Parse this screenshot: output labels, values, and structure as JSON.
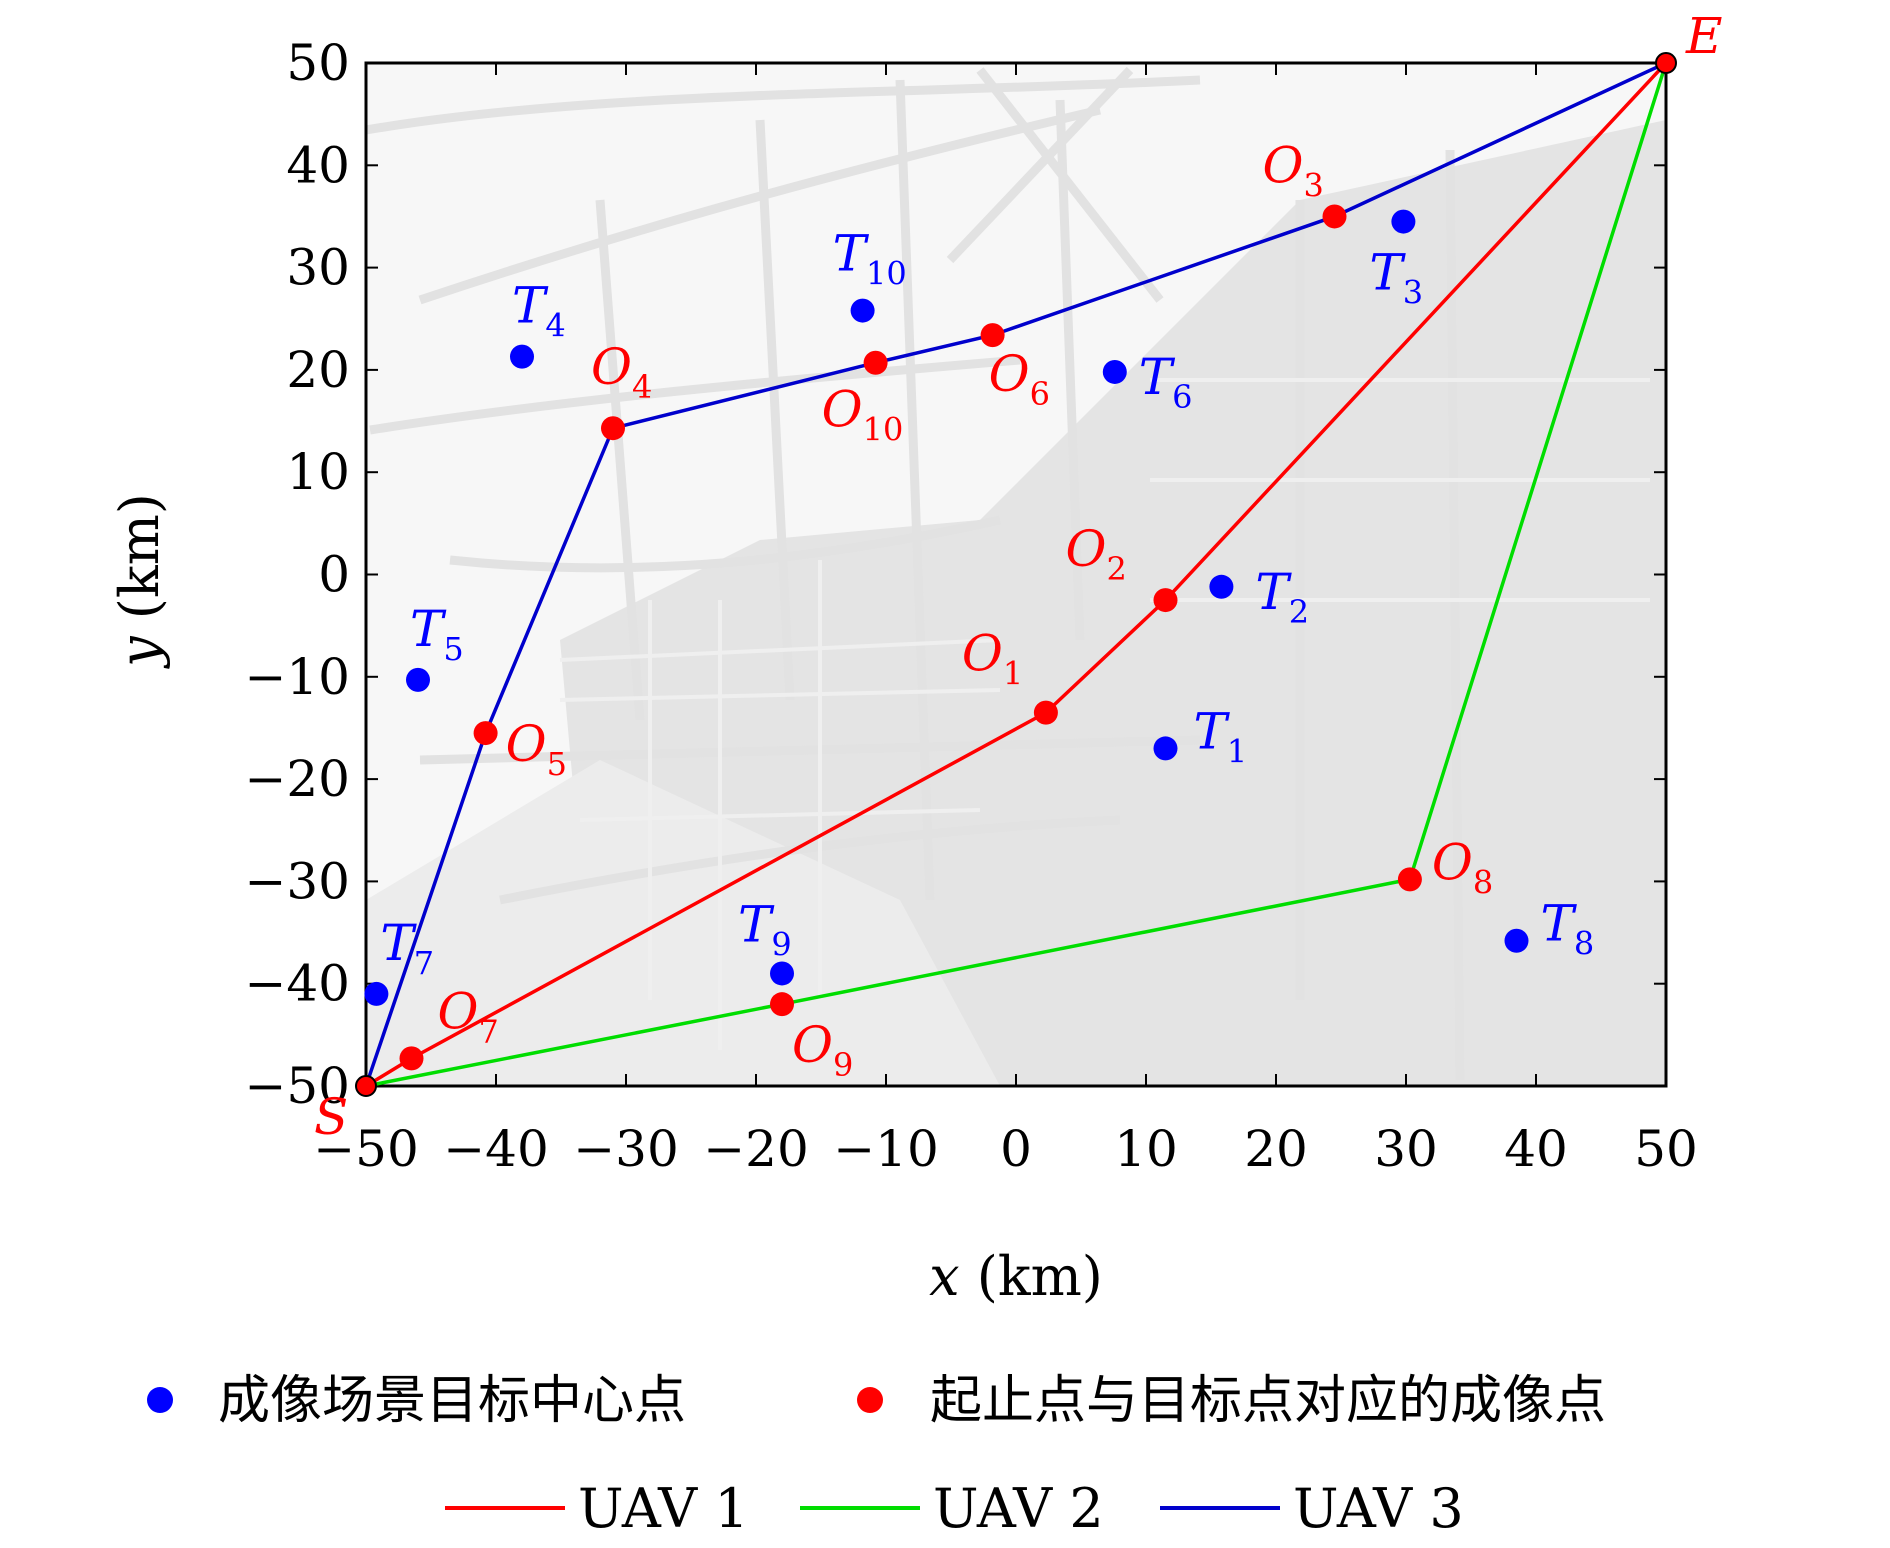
{
  "chart_data": {
    "type": "scatter",
    "xlabel_var": "x",
    "xlabel_unit": "(km)",
    "ylabel_var": "y",
    "ylabel_unit": "(km)",
    "xlim": [
      -50,
      50
    ],
    "ylim": [
      -50,
      50
    ],
    "x_ticks": [
      -50,
      -40,
      -30,
      -20,
      -10,
      0,
      10,
      20,
      30,
      40,
      50
    ],
    "y_ticks": [
      -50,
      -40,
      -30,
      -20,
      -10,
      0,
      10,
      20,
      30,
      40,
      50
    ],
    "x_tick_labels": [
      "−50",
      "−40",
      "−30",
      "−20",
      "−10",
      "0",
      "10",
      "20",
      "30",
      "40",
      "50"
    ],
    "y_tick_labels": [
      "−50",
      "−40",
      "−30",
      "−20",
      "−10",
      "0",
      "10",
      "20",
      "30",
      "40",
      "50"
    ],
    "background": "city road map (light gray)",
    "colors": {
      "target": "#0000ff",
      "imaging": "#ff0000",
      "uav1": "#ff0000",
      "uav2": "#00dd00",
      "uav3": "#0000cc"
    },
    "start": {
      "name": "S",
      "x": -50,
      "y": -50
    },
    "end": {
      "name": "E",
      "x": 50,
      "y": 50
    },
    "targets": [
      {
        "name": "T",
        "sub": "1",
        "x": 11.5,
        "y": -17
      },
      {
        "name": "T",
        "sub": "2",
        "x": 15.8,
        "y": -1.2
      },
      {
        "name": "T",
        "sub": "3",
        "x": 29.8,
        "y": 34.5
      },
      {
        "name": "T",
        "sub": "4",
        "x": -38,
        "y": 21.3
      },
      {
        "name": "T",
        "sub": "5",
        "x": -46,
        "y": -10.3
      },
      {
        "name": "T",
        "sub": "6",
        "x": 7.6,
        "y": 19.8
      },
      {
        "name": "T",
        "sub": "7",
        "x": -49.2,
        "y": -41
      },
      {
        "name": "T",
        "sub": "8",
        "x": 38.5,
        "y": -35.8
      },
      {
        "name": "T",
        "sub": "9",
        "x": -18,
        "y": -39
      },
      {
        "name": "T",
        "sub": "10",
        "x": -11.8,
        "y": 25.8
      }
    ],
    "imaging_points": [
      {
        "name": "O",
        "sub": "1",
        "x": 2.3,
        "y": -13.5
      },
      {
        "name": "O",
        "sub": "2",
        "x": 11.5,
        "y": -2.5
      },
      {
        "name": "O",
        "sub": "3",
        "x": 24.5,
        "y": 35
      },
      {
        "name": "O",
        "sub": "4",
        "x": -31,
        "y": 14.3
      },
      {
        "name": "O",
        "sub": "5",
        "x": -40.8,
        "y": -15.5
      },
      {
        "name": "O",
        "sub": "6",
        "x": -1.8,
        "y": 23.4
      },
      {
        "name": "O",
        "sub": "7",
        "x": -46.5,
        "y": -47.3
      },
      {
        "name": "O",
        "sub": "8",
        "x": 30.3,
        "y": -29.8
      },
      {
        "name": "O",
        "sub": "9",
        "x": -18,
        "y": -42
      },
      {
        "name": "O",
        "sub": "10",
        "x": -10.8,
        "y": 20.7
      }
    ],
    "paths": [
      {
        "name": "UAV 1",
        "x": [
          -50,
          -46.5,
          2.3,
          11.5,
          50
        ],
        "y": [
          -50,
          -47.3,
          -13.5,
          -2.5,
          50
        ]
      },
      {
        "name": "UAV 2",
        "x": [
          -50,
          -18,
          30.3,
          50
        ],
        "y": [
          -50,
          -42,
          -29.8,
          50
        ]
      },
      {
        "name": "UAV 3",
        "x": [
          -50,
          -40.8,
          -31,
          -10.8,
          -1.8,
          24.5,
          50
        ],
        "y": [
          -50,
          -15.5,
          14.3,
          20.7,
          23.4,
          35,
          50
        ]
      }
    ],
    "legend": {
      "placement": "bottom",
      "target_label": "成像场景目标中心点",
      "imaging_label": "起止点与目标点对应的成像点",
      "uav1_label": "UAV 1",
      "uav2_label": "UAV 2",
      "uav3_label": "UAV 3"
    }
  }
}
